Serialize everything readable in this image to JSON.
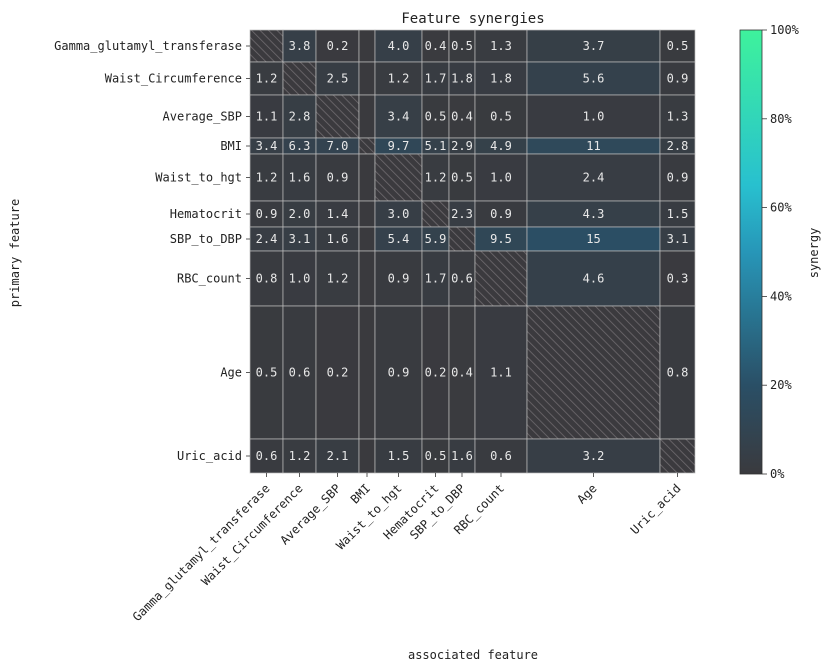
{
  "chart_data": {
    "type": "heatmap",
    "title": "Feature synergies",
    "xlabel": "associated feature",
    "ylabel": "primary feature",
    "rows": [
      "Gamma_glutamyl_transferase",
      "Waist_Circumference",
      "Average_SBP",
      "BMI",
      "Waist_to_hgt",
      "Hematocrit",
      "SBP_to_DBP",
      "RBC_count",
      "Age",
      "Uric_acid"
    ],
    "columns": [
      "Gamma_glutamyl_transferase",
      "Waist_Circumference",
      "Average_SBP",
      "BMI",
      "Waist_to_hgt",
      "Hematocrit",
      "SBP_to_DBP",
      "RBC_count",
      "Age",
      "Uric_acid"
    ],
    "values": [
      [
        null,
        3.8,
        0.2,
        null,
        4.0,
        0.4,
        0.5,
        1.3,
        3.7,
        0.5
      ],
      [
        1.2,
        null,
        2.5,
        null,
        1.2,
        1.7,
        1.8,
        1.8,
        5.6,
        0.9
      ],
      [
        1.1,
        2.8,
        null,
        null,
        3.4,
        0.5,
        0.4,
        0.5,
        1.0,
        1.3
      ],
      [
        3.4,
        6.3,
        7.0,
        null,
        9.7,
        5.1,
        2.9,
        4.9,
        11,
        2.8
      ],
      [
        1.2,
        1.6,
        0.9,
        null,
        null,
        1.2,
        0.5,
        1.0,
        2.4,
        0.9
      ],
      [
        0.9,
        2.0,
        1.4,
        null,
        3.0,
        null,
        2.3,
        0.9,
        4.3,
        1.5
      ],
      [
        2.4,
        3.1,
        1.6,
        null,
        5.4,
        5.9,
        null,
        9.5,
        15,
        3.1
      ],
      [
        0.8,
        1.0,
        1.2,
        null,
        0.9,
        1.7,
        0.6,
        null,
        4.6,
        0.3
      ],
      [
        0.5,
        0.6,
        0.2,
        null,
        0.9,
        0.2,
        0.4,
        1.1,
        null,
        0.8
      ],
      [
        0.6,
        1.2,
        2.1,
        null,
        1.5,
        0.5,
        1.6,
        0.6,
        3.2,
        null
      ]
    ],
    "value_labels": [
      [
        "",
        "3.8",
        "0.2",
        "",
        "4.0",
        "0.4",
        "0.5",
        "1.3",
        "3.7",
        "0.5"
      ],
      [
        "1.2",
        "",
        "2.5",
        "",
        "1.2",
        "1.7",
        "1.8",
        "1.8",
        "5.6",
        "0.9"
      ],
      [
        "1.1",
        "2.8",
        "",
        "",
        "3.4",
        "0.5",
        "0.4",
        "0.5",
        "1.0",
        "1.3"
      ],
      [
        "3.4",
        "6.3",
        "7.0",
        "",
        "9.7",
        "5.1",
        "2.9",
        "4.9",
        "11",
        "2.8"
      ],
      [
        "1.2",
        "1.6",
        "0.9",
        "",
        "",
        "1.2",
        "0.5",
        "1.0",
        "2.4",
        "0.9"
      ],
      [
        "0.9",
        "2.0",
        "1.4",
        "",
        "3.0",
        "",
        "2.3",
        "0.9",
        "4.3",
        "1.5"
      ],
      [
        "2.4",
        "3.1",
        "1.6",
        "",
        "5.4",
        "5.9",
        "",
        "9.5",
        "15",
        "3.1"
      ],
      [
        "0.8",
        "1.0",
        "1.2",
        "",
        "0.9",
        "1.7",
        "0.6",
        "",
        "4.6",
        "0.3"
      ],
      [
        "0.5",
        "0.6",
        "0.2",
        "",
        "0.9",
        "0.2",
        "0.4",
        "1.1",
        "",
        "0.8"
      ],
      [
        "0.6",
        "1.2",
        "2.1",
        "",
        "1.5",
        "0.5",
        "1.6",
        "0.6",
        "3.2",
        ""
      ]
    ],
    "colorbar": {
      "label": "synergy",
      "range": [
        0,
        100
      ],
      "ticks": [
        "0%",
        "20%",
        "40%",
        "60%",
        "80%",
        "100%"
      ],
      "colors": [
        "#3a3a3e",
        "#2a5a7a",
        "#2aa6c0",
        "#3ef0a0"
      ]
    },
    "diagonal": "hatched"
  }
}
